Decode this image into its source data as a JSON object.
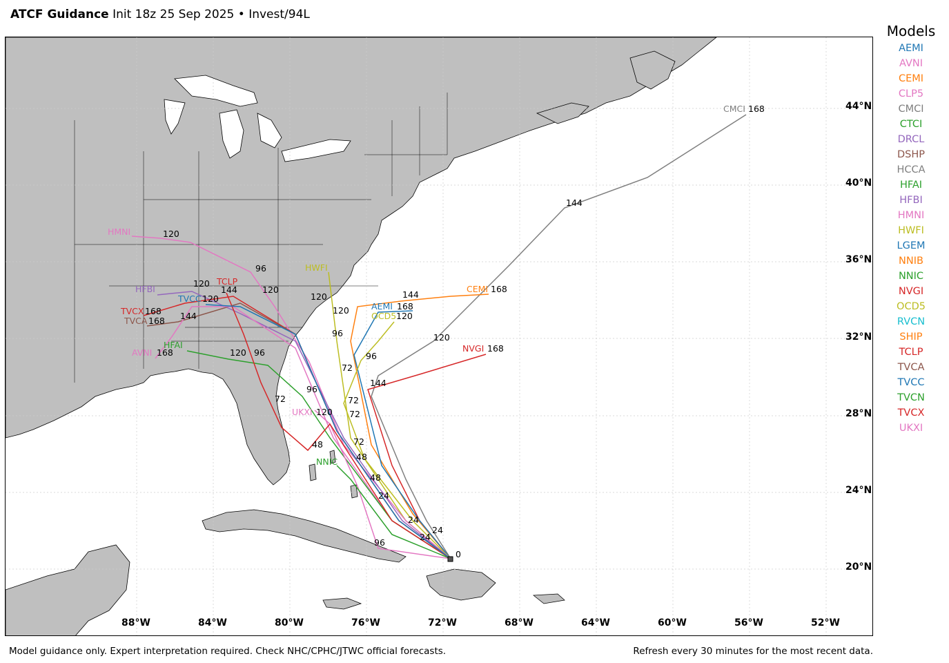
{
  "header": {
    "title": "ATCF Guidance",
    "subtitle": "Init 18z 25 Sep 2025 • Invest/94L"
  },
  "legend": {
    "title": "Models",
    "models": [
      {
        "name": "AEMI",
        "color": "#1f77b4"
      },
      {
        "name": "AVNI",
        "color": "#e377c2"
      },
      {
        "name": "CEMI",
        "color": "#ff7f0e"
      },
      {
        "name": "CLP5",
        "color": "#e377c2"
      },
      {
        "name": "CMCI",
        "color": "#7f7f7f"
      },
      {
        "name": "CTCI",
        "color": "#2ca02c"
      },
      {
        "name": "DRCL",
        "color": "#9467bd"
      },
      {
        "name": "DSHP",
        "color": "#8c564b"
      },
      {
        "name": "HCCA",
        "color": "#7f7f7f"
      },
      {
        "name": "HFAI",
        "color": "#2ca02c"
      },
      {
        "name": "HFBI",
        "color": "#9467bd"
      },
      {
        "name": "HMNI",
        "color": "#e377c2"
      },
      {
        "name": "HWFI",
        "color": "#bcbd22"
      },
      {
        "name": "LGEM",
        "color": "#1f77b4"
      },
      {
        "name": "NNIB",
        "color": "#ff7f0e"
      },
      {
        "name": "NNIC",
        "color": "#2ca02c"
      },
      {
        "name": "NVGI",
        "color": "#d62728"
      },
      {
        "name": "OCD5",
        "color": "#bcbd22"
      },
      {
        "name": "RVCN",
        "color": "#17becf"
      },
      {
        "name": "SHIP",
        "color": "#ff7f0e"
      },
      {
        "name": "TCLP",
        "color": "#d62728"
      },
      {
        "name": "TVCA",
        "color": "#8c564b"
      },
      {
        "name": "TVCC",
        "color": "#1f77b4"
      },
      {
        "name": "TVCN",
        "color": "#2ca02c"
      },
      {
        "name": "TVCX",
        "color": "#d62728"
      },
      {
        "name": "UKXI",
        "color": "#e377c2"
      }
    ]
  },
  "map": {
    "lat_labels": [
      "44°N",
      "40°N",
      "36°N",
      "32°N",
      "28°N",
      "24°N",
      "20°N"
    ],
    "lon_labels": [
      "88°W",
      "84°W",
      "80°W",
      "76°W",
      "72°W",
      "68°W",
      "64°W",
      "60°W",
      "56°W",
      "52°W"
    ],
    "init_label": "0",
    "track_labels": {
      "CMCI": [
        "CMCI",
        "168",
        "144",
        "120"
      ],
      "NVGI": [
        "NVGI",
        "168",
        "144"
      ],
      "CEMI": [
        "CEMI",
        "168",
        "144"
      ],
      "AEMI": [
        "AEMI",
        "168"
      ],
      "OCD5": [
        "OCD5",
        "120",
        "96"
      ],
      "HWFI": [
        "HWFI",
        "96"
      ],
      "HMNI": [
        "HMNI",
        "120",
        "96"
      ],
      "HFBI": [
        "HFBI",
        "120"
      ],
      "TVCX": [
        "TVCX",
        "168"
      ],
      "TVCA": [
        "TVCA",
        "168",
        "144"
      ],
      "AVNI": [
        "AVNI",
        "168"
      ],
      "HFAI": [
        "HFAI",
        "120",
        "96"
      ],
      "UKXI": [
        "UKXI",
        "120",
        "48"
      ],
      "NNIC": [
        "NNIC"
      ],
      "TCLP": [
        "TCLP",
        "144",
        "120"
      ],
      "TVCC": [
        "TVCC",
        "120"
      ],
      "misc": [
        "120",
        "120",
        "96",
        "72",
        "72",
        "72",
        "72",
        "48",
        "48",
        "24",
        "24",
        "24",
        "24",
        "96",
        "96",
        "72"
      ]
    }
  },
  "footer": {
    "left": "Model guidance only. Expert interpretation required. Check NHC/CPHC/JTWC official forecasts.",
    "right": "Refresh every 30 minutes for the most recent data."
  },
  "colors": {
    "land": "#bfbfbf",
    "water": "#ffffff",
    "grid": "#cccccc"
  }
}
